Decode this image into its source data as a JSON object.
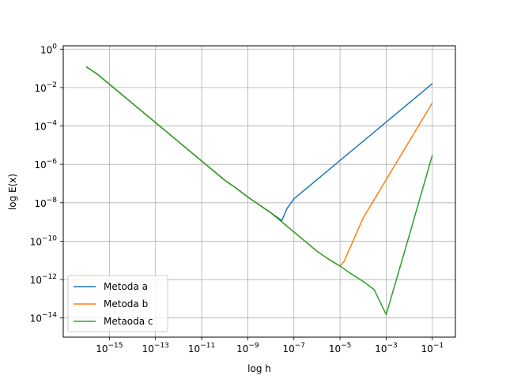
{
  "chart_data": {
    "type": "line",
    "title": "",
    "xlabel": "log h",
    "ylabel": "log E(x)",
    "x_scale": "log",
    "y_scale": "log",
    "xlim": [
      1e-17,
      1
    ],
    "ylim": [
      1e-15,
      1.5
    ],
    "grid": true,
    "legend_position": "lower-left",
    "x_ticks": [
      {
        "value": 1e-15,
        "base": "10",
        "exp": "−15"
      },
      {
        "value": 1e-13,
        "base": "10",
        "exp": "−13"
      },
      {
        "value": 1e-11,
        "base": "10",
        "exp": "−11"
      },
      {
        "value": 1e-09,
        "base": "10",
        "exp": "−9"
      },
      {
        "value": 1e-07,
        "base": "10",
        "exp": "−7"
      },
      {
        "value": 1e-05,
        "base": "10",
        "exp": "−5"
      },
      {
        "value": 0.001,
        "base": "10",
        "exp": "−3"
      },
      {
        "value": 0.1,
        "base": "10",
        "exp": "−1"
      }
    ],
    "y_ticks": [
      {
        "value": 1e-14,
        "base": "10",
        "exp": "−14"
      },
      {
        "value": 1e-12,
        "base": "10",
        "exp": "−12"
      },
      {
        "value": 1e-10,
        "base": "10",
        "exp": "−10"
      },
      {
        "value": 1e-08,
        "base": "10",
        "exp": "−8"
      },
      {
        "value": 1e-06,
        "base": "10",
        "exp": "−6"
      },
      {
        "value": 0.0001,
        "base": "10",
        "exp": "−4"
      },
      {
        "value": 0.01,
        "base": "10",
        "exp": "−2"
      },
      {
        "value": 1,
        "base": "10",
        "exp": "0"
      }
    ],
    "series": [
      {
        "name": "Metoda a",
        "color": "#1f77b4",
        "x": [
          1e-16,
          3e-16,
          1e-15,
          3e-15,
          1e-14,
          3e-14,
          1e-13,
          3e-13,
          1e-12,
          3e-12,
          1e-11,
          3e-11,
          1e-10,
          3e-10,
          1e-09,
          3e-09,
          1e-08,
          3e-08,
          5e-08,
          1e-07,
          1e-06,
          1e-05,
          0.0001,
          0.001,
          0.01,
          0.1
        ],
        "y": [
          0.12,
          0.05,
          0.015,
          0.005,
          0.0015,
          0.0005,
          0.00015,
          5e-05,
          1.5e-05,
          5e-06,
          1.5e-06,
          5e-07,
          1.5e-07,
          6e-08,
          2e-08,
          8e-09,
          3e-09,
          1.2e-09,
          5e-09,
          1.6e-08,
          1.6e-07,
          1.6e-06,
          1.6e-05,
          0.00016,
          0.0016,
          0.016
        ]
      },
      {
        "name": "Metoda b",
        "color": "#ff7f0e",
        "x": [
          1e-16,
          3e-16,
          1e-15,
          3e-15,
          1e-14,
          3e-14,
          1e-13,
          3e-13,
          1e-12,
          3e-12,
          1e-11,
          3e-11,
          1e-10,
          3e-10,
          1e-09,
          3e-09,
          1e-08,
          3e-08,
          1e-07,
          3e-07,
          1e-06,
          3e-06,
          1e-05,
          1.5e-05,
          0.0001,
          0.001,
          0.01,
          0.1
        ],
        "y": [
          0.12,
          0.05,
          0.015,
          0.005,
          0.0015,
          0.0005,
          0.00015,
          5e-05,
          1.5e-05,
          5e-06,
          1.5e-06,
          5e-07,
          1.5e-07,
          6e-08,
          2e-08,
          8e-09,
          3e-09,
          1e-09,
          3e-10,
          1e-10,
          3e-11,
          1.2e-11,
          5e-12,
          9e-12,
          1.6e-09,
          1.6e-07,
          1.6e-05,
          0.0016
        ]
      },
      {
        "name": "Metaoda c",
        "color": "#2ca02c",
        "x": [
          1e-16,
          3e-16,
          1e-15,
          3e-15,
          1e-14,
          3e-14,
          1e-13,
          3e-13,
          1e-12,
          3e-12,
          1e-11,
          3e-11,
          1e-10,
          3e-10,
          1e-09,
          3e-09,
          1e-08,
          3e-08,
          1e-07,
          3e-07,
          1e-06,
          3e-06,
          1e-05,
          3e-05,
          0.0001,
          0.0003,
          0.001,
          0.01,
          0.1
        ],
        "y": [
          0.12,
          0.05,
          0.015,
          0.005,
          0.0015,
          0.0005,
          0.00015,
          5e-05,
          1.5e-05,
          5e-06,
          1.5e-06,
          5e-07,
          1.5e-07,
          6e-08,
          2e-08,
          8e-09,
          3e-09,
          1e-09,
          3e-10,
          1e-10,
          3e-11,
          1.2e-11,
          5e-12,
          2e-12,
          8e-13,
          3e-13,
          1.5e-14,
          2e-10,
          3e-06
        ]
      }
    ]
  }
}
